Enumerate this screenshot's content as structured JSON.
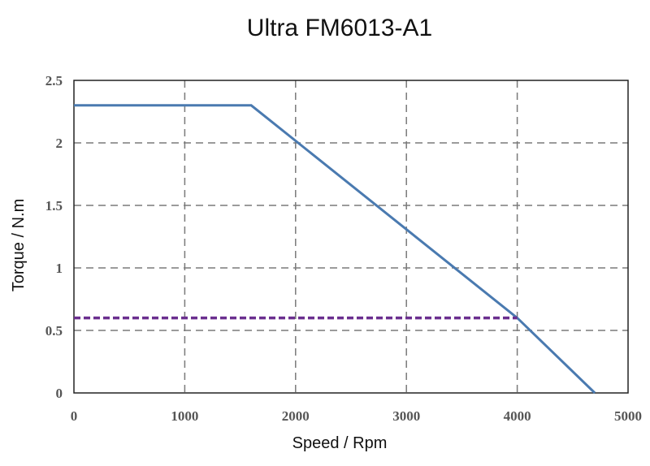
{
  "chart_data": {
    "type": "line",
    "title": "Ultra FM6013-A1",
    "xlabel": "Speed / Rpm",
    "ylabel": "Torque / N.m",
    "xlim": [
      0,
      5000
    ],
    "ylim": [
      0,
      2.5
    ],
    "x_ticks": [
      0,
      1000,
      2000,
      3000,
      4000,
      5000
    ],
    "y_ticks": [
      0,
      0.5,
      1,
      1.5,
      2,
      2.5
    ],
    "x_tick_labels": [
      "0",
      "1000",
      "2000",
      "3000",
      "4000",
      "5000"
    ],
    "y_tick_labels": [
      "0",
      "0.5",
      "1",
      "1.5",
      "2",
      "2.5"
    ],
    "grid": true,
    "series": [
      {
        "style": "solid",
        "color": "#4a7ab0",
        "x": [
          0,
          1600,
          4000,
          4700
        ],
        "y": [
          2.3,
          2.3,
          0.6,
          0
        ]
      },
      {
        "style": "dashed",
        "color": "#6b2f8f",
        "x": [
          0,
          4000
        ],
        "y": [
          0.6,
          0.6
        ]
      }
    ]
  }
}
